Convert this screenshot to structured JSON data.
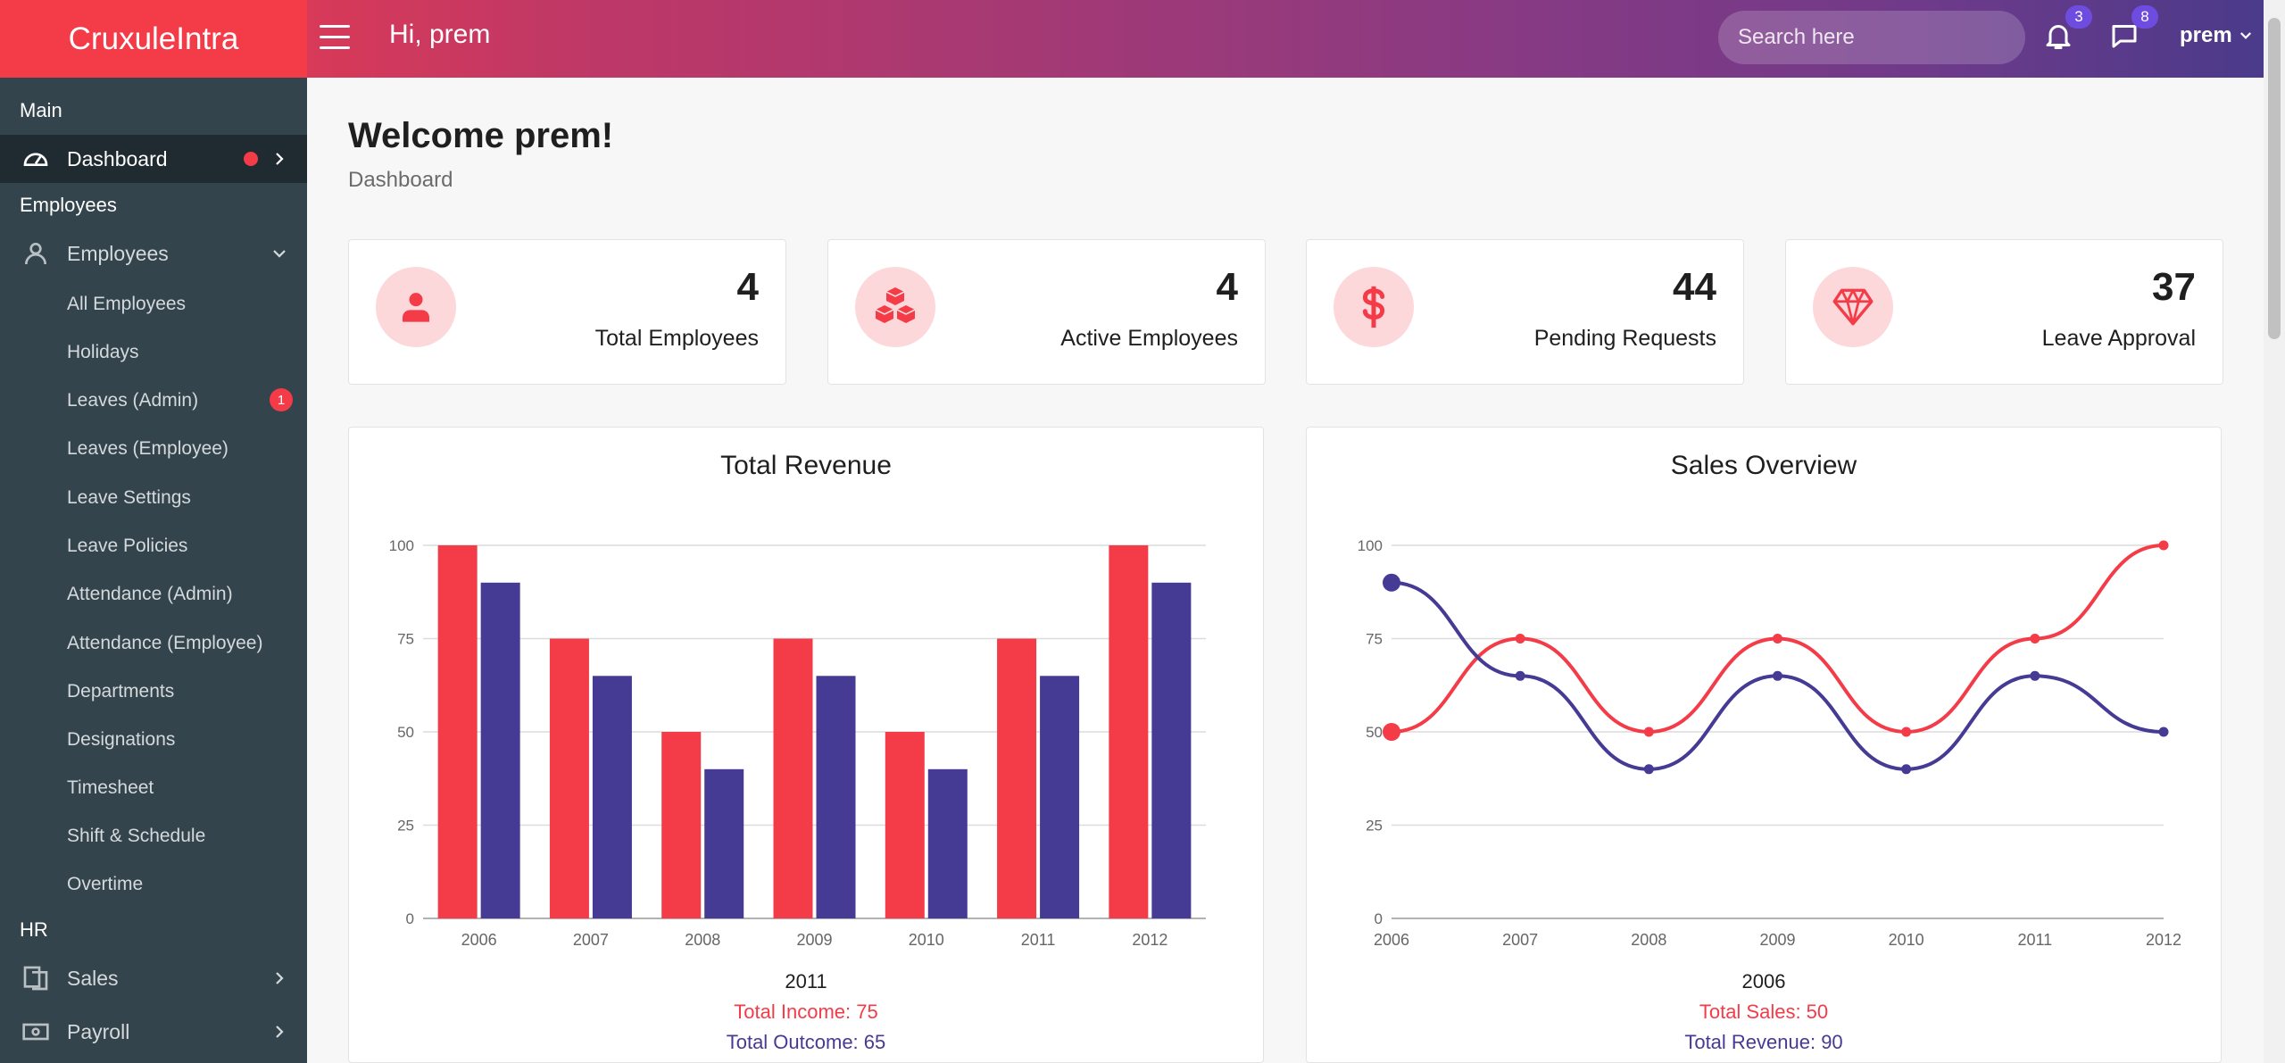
{
  "header": {
    "brand": "CruxuleIntra",
    "greeting": "Hi, prem",
    "search_placeholder": "Search here",
    "notifications_count": "3",
    "messages_count": "8",
    "user_name": "prem"
  },
  "sidebar": {
    "main_section": "Main",
    "dashboard": "Dashboard",
    "employees_section": "Employees",
    "employees_menu": "Employees",
    "sub_items": [
      "All Employees",
      "Holidays",
      "Leaves (Admin)",
      "Leaves (Employee)",
      "Leave Settings",
      "Leave Policies",
      "Attendance (Admin)",
      "Attendance (Employee)",
      "Departments",
      "Designations",
      "Timesheet",
      "Shift & Schedule",
      "Overtime"
    ],
    "leaves_admin_badge": "1",
    "hr_section": "HR",
    "sales": "Sales",
    "payroll": "Payroll"
  },
  "page": {
    "title": "Welcome prem!",
    "breadcrumb": "Dashboard"
  },
  "stats": [
    {
      "value": "4",
      "label": "Total Employees",
      "icon": "user-icon"
    },
    {
      "value": "4",
      "label": "Active Employees",
      "icon": "cubes-icon"
    },
    {
      "value": "44",
      "label": "Pending Requests",
      "icon": "dollar-icon"
    },
    {
      "value": "37",
      "label": "Leave Approval",
      "icon": "diamond-icon"
    }
  ],
  "colors": {
    "accent": "#f43b48",
    "secondary": "#453a94"
  },
  "charts": {
    "revenue": {
      "title": "Total Revenue",
      "hover_label": "2011",
      "line1": "Total Income: 75",
      "line2": "Total Outcome: 65"
    },
    "sales": {
      "title": "Sales Overview",
      "hover_label": "2006",
      "line1": "Total Sales: 50",
      "line2": "Total Revenue: 90"
    }
  },
  "chart_data": [
    {
      "type": "bar",
      "title": "Total Revenue",
      "categories": [
        "2006",
        "2007",
        "2008",
        "2009",
        "2010",
        "2011",
        "2012"
      ],
      "series": [
        {
          "name": "Total Income",
          "values": [
            100,
            75,
            50,
            75,
            50,
            75,
            100
          ]
        },
        {
          "name": "Total Outcome",
          "values": [
            90,
            65,
            40,
            65,
            40,
            65,
            90
          ]
        }
      ],
      "yticks": [
        "0",
        "25",
        "50",
        "75",
        "100"
      ],
      "ylim": [
        0,
        100
      ],
      "grid": true
    },
    {
      "type": "line",
      "title": "Sales Overview",
      "categories": [
        "2006",
        "2007",
        "2008",
        "2009",
        "2010",
        "2011",
        "2012"
      ],
      "series": [
        {
          "name": "Total Sales",
          "values": [
            50,
            75,
            50,
            75,
            50,
            75,
            100
          ]
        },
        {
          "name": "Total Revenue",
          "values": [
            90,
            65,
            40,
            65,
            40,
            65,
            50
          ]
        }
      ],
      "yticks": [
        "0",
        "25",
        "50",
        "75",
        "100"
      ],
      "ylim": [
        0,
        100
      ],
      "grid": true
    }
  ]
}
